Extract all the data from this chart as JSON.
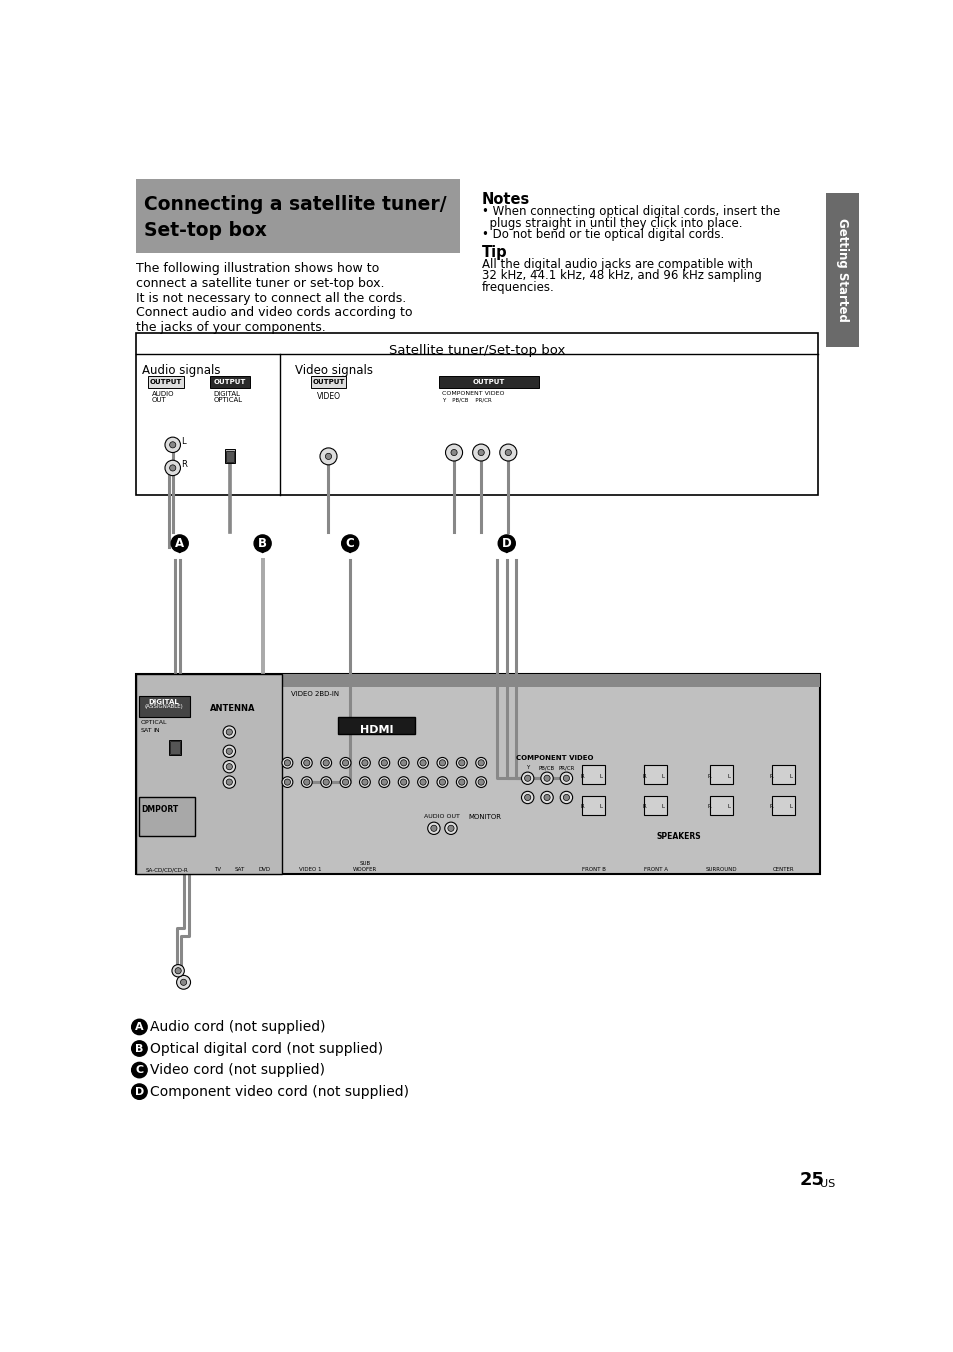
{
  "page_bg": "#ffffff",
  "title_bg": "#999999",
  "title_line1": "Connecting a satellite tuner/",
  "title_line2": "Set-top box",
  "body_lines": [
    "The following illustration shows how to",
    "connect a satellite tuner or set-top box.",
    "It is not necessary to connect all the cords.",
    "Connect audio and video cords according to",
    "the jacks of your components."
  ],
  "notes_title": "Notes",
  "notes_lines": [
    "• When connecting optical digital cords, insert the",
    "  plugs straight in until they click into place.",
    "• Do not bend or tie optical digital cords."
  ],
  "tip_title": "Tip",
  "tip_lines": [
    "All the digital audio jacks are compatible with",
    "32 kHz, 44.1 kHz, 48 kHz, and 96 kHz sampling",
    "frequencies."
  ],
  "sidebar_text": "Getting Started",
  "sidebar_bg": "#6a6a6a",
  "diagram_title": "Satellite tuner/Set-top box",
  "audio_label": "Audio signals",
  "video_label": "Video signals",
  "legend_items": [
    [
      "A",
      "Audio cord (not supplied)"
    ],
    [
      "B",
      "Optical digital cord (not supplied)"
    ],
    [
      "C",
      "Video cord (not supplied)"
    ],
    [
      "D",
      "Component video cord (not supplied)"
    ]
  ],
  "page_num": "25",
  "page_suffix": "US"
}
